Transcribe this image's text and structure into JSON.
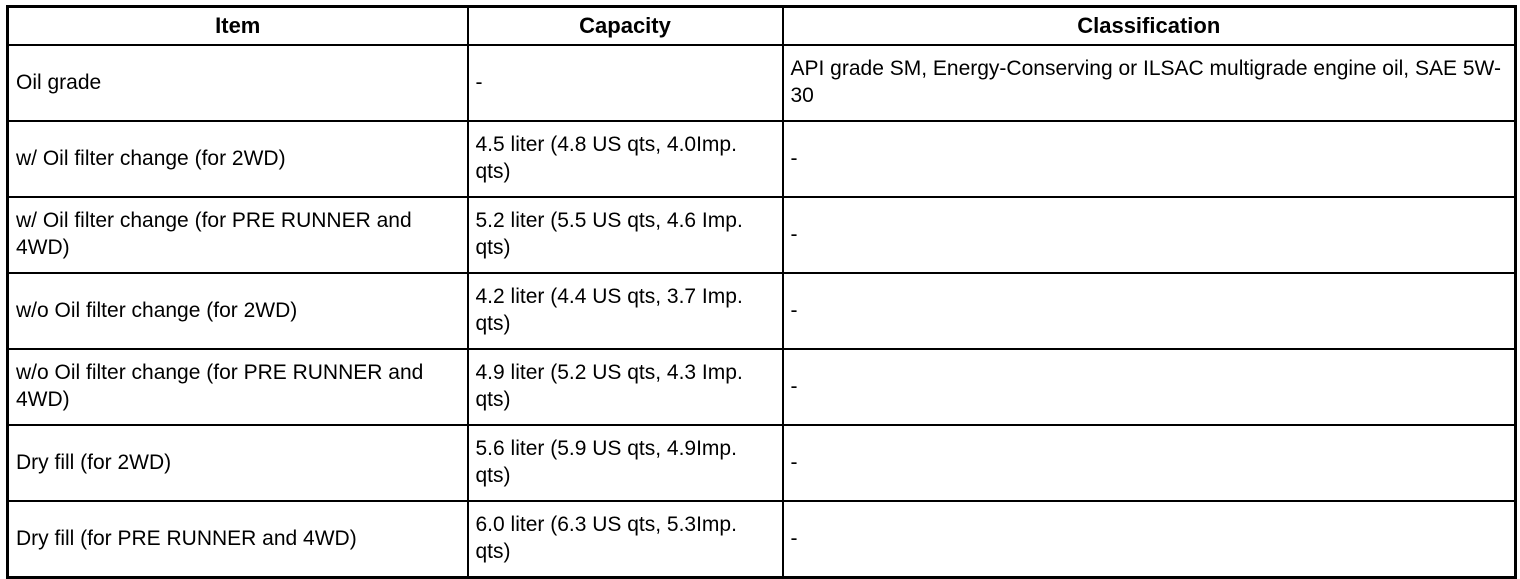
{
  "table": {
    "columns": [
      "Item",
      "Capacity",
      "Classification"
    ],
    "rows": [
      {
        "item": "Oil grade",
        "capacity": "-",
        "classification": "API grade SM, Energy-Conserving or ILSAC multigrade engine oil, SAE 5W-30"
      },
      {
        "item": "w/ Oil filter change (for 2WD)",
        "capacity": "4.5 liter (4.8 US qts, 4.0Imp. qts)",
        "classification": "-"
      },
      {
        "item": "w/ Oil filter change (for PRE RUNNER and 4WD)",
        "capacity": "5.2 liter (5.5 US qts, 4.6 Imp. qts)",
        "classification": "-"
      },
      {
        "item": "w/o Oil filter change (for 2WD)",
        "capacity": "4.2 liter (4.4 US qts, 3.7 Imp. qts)",
        "classification": "-"
      },
      {
        "item": "w/o Oil filter change (for PRE RUNNER and 4WD)",
        "capacity": "4.9 liter (5.2 US qts, 4.3 Imp. qts)",
        "classification": "-"
      },
      {
        "item": "Dry fill (for 2WD)",
        "capacity": "5.6 liter (5.9 US qts, 4.9Imp. qts)",
        "classification": "-"
      },
      {
        "item": "Dry fill (for PRE RUNNER and 4WD)",
        "capacity": "6.0 liter (6.3 US qts, 5.3Imp. qts)",
        "classification": "-"
      }
    ]
  }
}
